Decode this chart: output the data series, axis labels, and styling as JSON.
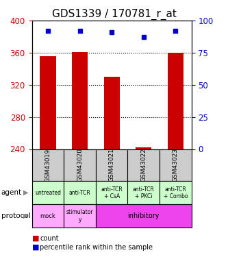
{
  "title": "GDS1339 / 170781_r_at",
  "samples": [
    "GSM43019",
    "GSM43020",
    "GSM43021",
    "GSM43022",
    "GSM43023"
  ],
  "bar_values": [
    356,
    361,
    330,
    242,
    360
  ],
  "bar_bottom": 240,
  "percentile_values": [
    92,
    92,
    91,
    87,
    92
  ],
  "ylim_left": [
    240,
    400
  ],
  "ylim_right": [
    0,
    100
  ],
  "yticks_left": [
    240,
    280,
    320,
    360,
    400
  ],
  "yticks_right": [
    0,
    25,
    50,
    75,
    100
  ],
  "bar_color": "#cc0000",
  "dot_color": "#0000cc",
  "agent_labels": [
    "untreated",
    "anti-TCR",
    "anti-TCR\n+ CsA",
    "anti-TCR\n+ PKCi",
    "anti-TCR\n+ Combo"
  ],
  "agent_bg": "#ccffcc",
  "sample_bg": "#cccccc",
  "proto_mock_bg": "#ffaaff",
  "proto_stim_bg": "#ffaaff",
  "proto_inhib_bg": "#ee44ee",
  "left_label_agent": "agent",
  "left_label_protocol": "protocol",
  "legend_count_color": "#cc0000",
  "legend_pct_color": "#0000cc",
  "title_fontsize": 11,
  "tick_fontsize": 8.5,
  "bar_width": 0.5
}
